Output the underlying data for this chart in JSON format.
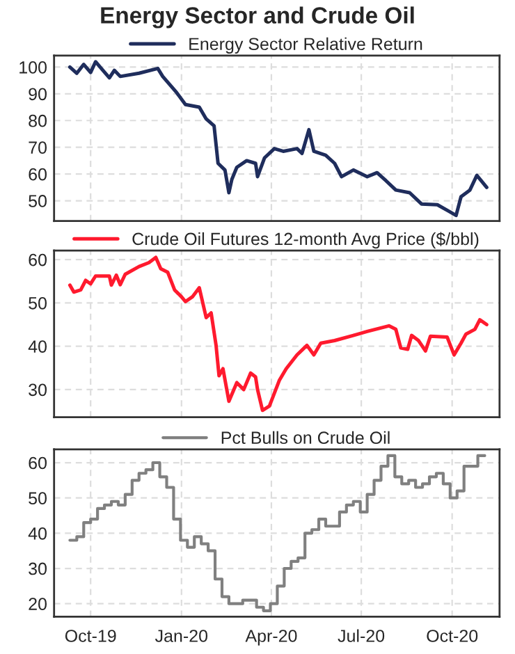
{
  "chart_data": [
    {
      "type": "line",
      "title": "Energy Sector and Crude Oil",
      "tick_labels": "y",
      "grid": true,
      "legend": "top",
      "line_style": "solid",
      "xlim": [
        "2019-08-25",
        "2020-11-18"
      ],
      "ylim": [
        42.4,
        104.3
      ],
      "yticks": [
        50,
        60,
        70,
        80,
        90,
        100
      ],
      "xticks": [
        {
          "value": "2019-10-01",
          "label": null
        },
        {
          "value": "2020-01-01",
          "label": null
        },
        {
          "value": "2020-04-01",
          "label": null
        },
        {
          "value": "2020-07-01",
          "label": null
        },
        {
          "value": "2020-10-01",
          "label": null
        }
      ],
      "series": [
        {
          "name": "Energy Sector Relative Return",
          "color": "#1f2d5c",
          "x": [
            "2019-09-10",
            "2019-09-17",
            "2019-09-24",
            "2019-10-01",
            "2019-10-06",
            "2019-10-13",
            "2019-10-20",
            "2019-10-25",
            "2019-10-31",
            "2019-11-19",
            "2019-12-08",
            "2019-12-13",
            "2019-12-27",
            "2020-01-05",
            "2020-01-19",
            "2020-01-26",
            "2020-02-03",
            "2020-02-07",
            "2020-02-14",
            "2020-02-18",
            "2020-02-21",
            "2020-02-26",
            "2020-03-07",
            "2020-03-16",
            "2020-03-18",
            "2020-03-25",
            "2020-04-04",
            "2020-04-13",
            "2020-04-27",
            "2020-05-02",
            "2020-05-09",
            "2020-05-14",
            "2020-05-26",
            "2020-06-04",
            "2020-06-11",
            "2020-06-23",
            "2020-07-07",
            "2020-07-17",
            "2020-07-26",
            "2020-08-05",
            "2020-08-19",
            "2020-08-31",
            "2020-09-16",
            "2020-09-28",
            "2020-10-05",
            "2020-10-10",
            "2020-10-19",
            "2020-10-26",
            "2020-11-05"
          ],
          "values": [
            100,
            97.7,
            101,
            98,
            102,
            99,
            96,
            98.8,
            96.5,
            97.7,
            99.5,
            96.5,
            90.5,
            86,
            85,
            80.6,
            78,
            64,
            61.5,
            53,
            58,
            62.5,
            65,
            64,
            59,
            66,
            69.5,
            68.5,
            69.5,
            67.7,
            76.6,
            68.5,
            67,
            64,
            59,
            61.5,
            59,
            60.5,
            57.5,
            54,
            53,
            48.8,
            48.5,
            46,
            44.5,
            51.5,
            54,
            59.5,
            55
          ]
        }
      ]
    },
    {
      "type": "line",
      "tick_labels": "y",
      "grid": true,
      "legend": "top",
      "line_style": "solid",
      "xlim": [
        "2019-08-25",
        "2020-11-18"
      ],
      "ylim": [
        23.6,
        62.1
      ],
      "yticks": [
        30,
        40,
        50,
        60
      ],
      "xticks": [
        {
          "value": "2019-10-01",
          "label": null
        },
        {
          "value": "2020-01-01",
          "label": null
        },
        {
          "value": "2020-04-01",
          "label": null
        },
        {
          "value": "2020-07-01",
          "label": null
        },
        {
          "value": "2020-10-01",
          "label": null
        }
      ],
      "series": [
        {
          "name": "Crude Oil Futures 12-month Avg Price ($/bbl)",
          "color": "#ff1a2e",
          "x": [
            "2019-09-10",
            "2019-09-14",
            "2019-09-21",
            "2019-09-26",
            "2019-10-01",
            "2019-10-06",
            "2019-10-20",
            "2019-10-22",
            "2019-10-27",
            "2019-10-31",
            "2019-11-05",
            "2019-11-19",
            "2019-11-29",
            "2019-12-06",
            "2019-12-11",
            "2019-12-18",
            "2019-12-25",
            "2020-01-01",
            "2020-01-05",
            "2020-01-12",
            "2020-01-19",
            "2020-01-26",
            "2020-01-31",
            "2020-02-05",
            "2020-02-08",
            "2020-02-12",
            "2020-02-18",
            "2020-02-26",
            "2020-03-04",
            "2020-03-11",
            "2020-03-16",
            "2020-03-18",
            "2020-03-23",
            "2020-03-30",
            "2020-04-09",
            "2020-04-16",
            "2020-04-27",
            "2020-05-07",
            "2020-05-14",
            "2020-05-21",
            "2020-06-04",
            "2020-06-23",
            "2020-07-07",
            "2020-07-29",
            "2020-08-05",
            "2020-08-10",
            "2020-08-17",
            "2020-08-21",
            "2020-08-28",
            "2020-09-04",
            "2020-09-09",
            "2020-09-26",
            "2020-10-03",
            "2020-10-10",
            "2020-10-15",
            "2020-10-24",
            "2020-10-29",
            "2020-11-05"
          ],
          "values": [
            54.1,
            52.5,
            53,
            55.2,
            54.4,
            56.2,
            56.2,
            54.1,
            56.4,
            54.2,
            56.6,
            58.4,
            59.3,
            60.5,
            57.9,
            57.1,
            53,
            51.4,
            50.3,
            51.4,
            53.5,
            46.6,
            47.7,
            40.2,
            33.2,
            34.8,
            27.3,
            31.6,
            30,
            33.8,
            32.9,
            30,
            25.2,
            26.2,
            32.1,
            34.8,
            38,
            40.2,
            38,
            40.7,
            41.3,
            42.5,
            43.4,
            44.7,
            43.9,
            39.6,
            39.3,
            42.5,
            41.3,
            38.9,
            42.3,
            42.1,
            38,
            40.7,
            42.8,
            43.9,
            46.1,
            45
          ]
        }
      ]
    },
    {
      "type": "step",
      "grid": true,
      "legend": "top",
      "line_style": "solid",
      "xlim": [
        "2019-08-25",
        "2020-11-18"
      ],
      "ylim": [
        16.3,
        63.8
      ],
      "yticks": [
        20,
        30,
        40,
        50,
        60
      ],
      "xticks": [
        {
          "value": "2019-10-01",
          "label": "Oct-19"
        },
        {
          "value": "2020-01-01",
          "label": "Jan-20"
        },
        {
          "value": "2020-04-01",
          "label": "Apr-20"
        },
        {
          "value": "2020-07-01",
          "label": "Jul-20"
        },
        {
          "value": "2020-10-01",
          "label": "Oct-20"
        }
      ],
      "series": [
        {
          "name": "Pct Bulls on Crude Oil",
          "color": "#808080",
          "x": [
            "2019-09-10",
            "2019-09-17",
            "2019-09-24",
            "2019-10-01",
            "2019-10-08",
            "2019-10-15",
            "2019-10-22",
            "2019-10-29",
            "2019-11-05",
            "2019-11-12",
            "2019-11-19",
            "2019-11-26",
            "2019-12-03",
            "2019-12-10",
            "2019-12-17",
            "2019-12-24",
            "2019-12-31",
            "2020-01-07",
            "2020-01-14",
            "2020-01-21",
            "2020-01-28",
            "2020-02-04",
            "2020-02-11",
            "2020-02-18",
            "2020-02-25",
            "2020-03-03",
            "2020-03-10",
            "2020-03-17",
            "2020-03-24",
            "2020-03-31",
            "2020-04-07",
            "2020-04-14",
            "2020-04-21",
            "2020-04-28",
            "2020-05-05",
            "2020-05-12",
            "2020-05-19",
            "2020-05-26",
            "2020-06-02",
            "2020-06-09",
            "2020-06-16",
            "2020-06-23",
            "2020-06-30",
            "2020-07-07",
            "2020-07-14",
            "2020-07-21",
            "2020-07-28",
            "2020-08-04",
            "2020-08-11",
            "2020-08-18",
            "2020-08-25",
            "2020-09-01",
            "2020-09-08",
            "2020-09-15",
            "2020-09-22",
            "2020-09-29",
            "2020-10-06",
            "2020-10-13",
            "2020-10-20",
            "2020-10-27",
            "2020-11-03"
          ],
          "values": [
            38,
            39,
            43,
            44,
            47,
            48,
            49,
            48,
            51,
            55,
            57,
            58,
            60,
            56,
            53,
            44,
            38,
            36,
            39,
            37,
            35,
            27,
            22,
            20,
            20,
            21,
            21,
            19,
            18,
            20,
            25,
            30,
            32,
            33,
            40,
            41,
            44,
            42,
            42,
            46,
            48,
            49,
            46,
            51,
            55,
            59,
            62,
            56,
            54,
            55,
            53,
            54,
            56,
            57,
            54,
            50,
            52,
            59,
            59,
            62,
            62
          ]
        }
      ]
    }
  ]
}
